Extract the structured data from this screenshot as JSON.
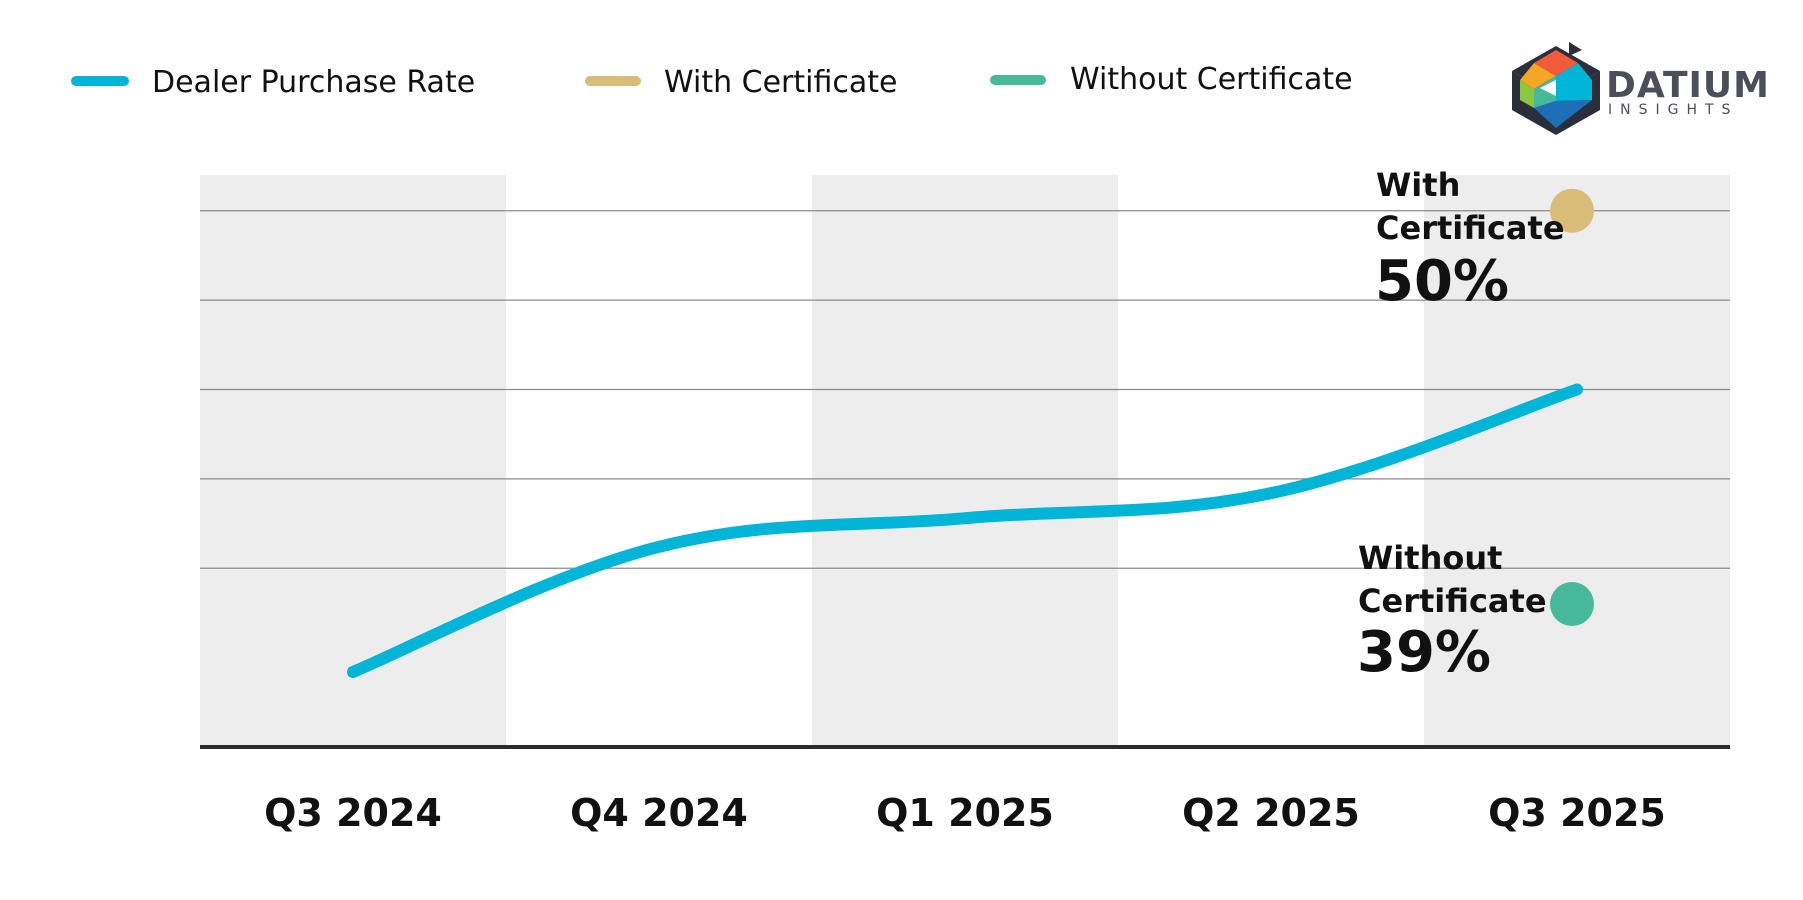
{
  "legend": [
    {
      "label": "Dealer Purchase Rate",
      "color": "#00b5d8"
    },
    {
      "label": "With Certificate",
      "color": "#d8bd78"
    },
    {
      "label": "Without Certificate",
      "color": "#45b99a"
    }
  ],
  "logo": {
    "name": "DATIUM",
    "sub": "INSIGHTS"
  },
  "colors": {
    "band": "#ededed",
    "grid": "#8a8a8a",
    "baseline": "#2b2b2b",
    "line": "#00b5d8",
    "with_cert": "#d8bd78",
    "without_cert": "#45b99a"
  },
  "callouts": [
    {
      "label_lines": [
        "With",
        "Certificate"
      ],
      "value": "50%"
    },
    {
      "label_lines": [
        "Without",
        "Certificate"
      ],
      "value": "39%"
    }
  ],
  "chart_data": {
    "type": "line",
    "categories": [
      "Q3 2024",
      "Q4 2024",
      "Q1 2025",
      "Q2 2025",
      "Q3 2025"
    ],
    "series": [
      {
        "name": "Dealer Purchase Rate",
        "values": [
          37.1,
          40.6,
          41.4,
          42.1,
          45.0
        ]
      },
      {
        "name": "With Certificate",
        "values": [
          null,
          null,
          null,
          null,
          50.0
        ]
      },
      {
        "name": "Without Certificate",
        "values": [
          null,
          null,
          null,
          null,
          39.0
        ]
      }
    ],
    "ylim": [
      35,
      51
    ],
    "y_gridlines": [
      40,
      42.5,
      45,
      47.5,
      50
    ],
    "grid": true,
    "alternating_bands": true,
    "legend_position": "top-left",
    "title": "",
    "xlabel": "",
    "ylabel": ""
  }
}
